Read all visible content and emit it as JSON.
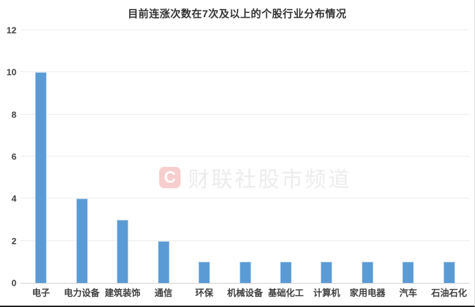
{
  "chart_data": {
    "type": "bar",
    "title": "目前连涨次数在7次及以上的个股行业分布情况",
    "categories": [
      "电子",
      "电力设备",
      "建筑装饰",
      "通信",
      "环保",
      "机械设备",
      "基础化工",
      "计算机",
      "家用电器",
      "汽车",
      "石油石化"
    ],
    "values": [
      10,
      4,
      3,
      2,
      1,
      1,
      1,
      1,
      1,
      1,
      1
    ],
    "xlabel": "",
    "ylabel": "",
    "ylim": [
      0,
      12
    ],
    "ytick_interval": 2,
    "yticks": [
      0,
      2,
      4,
      6,
      8,
      10,
      12
    ],
    "grid": true,
    "legend": false,
    "bar_color": "#5B9BD5"
  },
  "watermark": {
    "logo_letter": "C",
    "text": "财联社股市频道"
  }
}
